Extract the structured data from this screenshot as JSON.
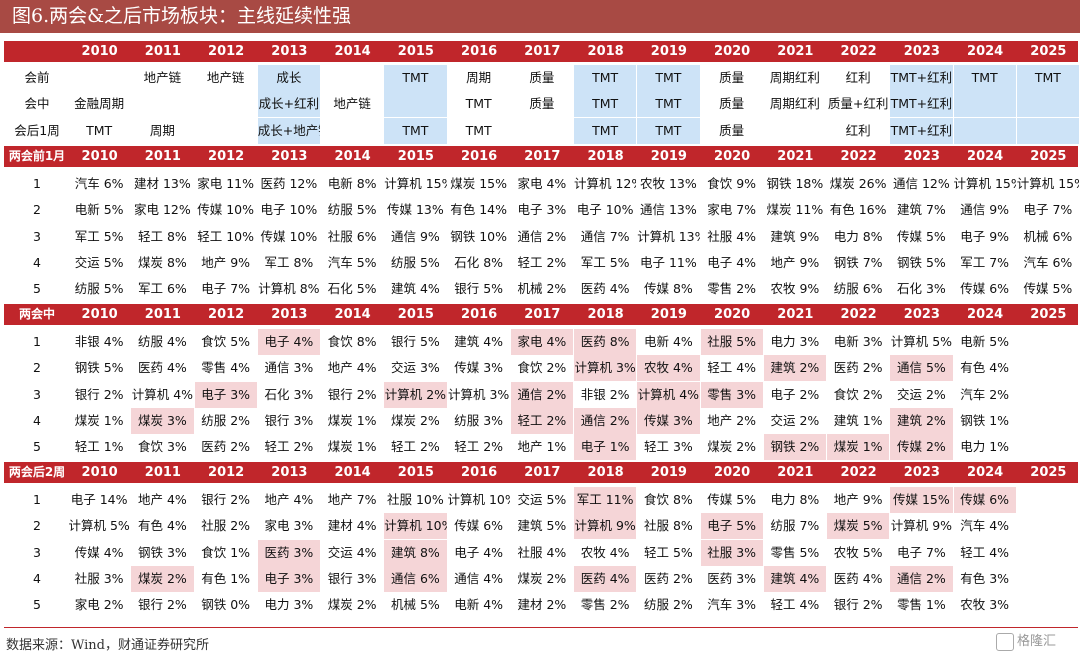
{
  "title": "图6.两会&之后市场板块：主线延续性强",
  "years": [
    "2010",
    "2011",
    "2012",
    "2013",
    "2014",
    "2015",
    "2016",
    "2017",
    "2018",
    "2019",
    "2020",
    "2021",
    "2022",
    "2023",
    "2024",
    "2025"
  ],
  "summary": {
    "rows": [
      {
        "label": "会前",
        "cells": [
          "",
          "地产链",
          "地产链",
          "成长",
          "",
          "TMT",
          "周期",
          "质量",
          "TMT",
          "TMT",
          "质量",
          "周期红利",
          "红利",
          "TMT+红利",
          "TMT",
          "TMT"
        ]
      },
      {
        "label": "会中",
        "cells": [
          "金融周期",
          "",
          "",
          "成长+红利",
          "地产链",
          "",
          "TMT",
          "质量",
          "TMT",
          "TMT",
          "质量",
          "周期红利",
          "质量+红利",
          "TMT+红利",
          "",
          ""
        ]
      },
      {
        "label": "会后1周",
        "cells": [
          "TMT",
          "周期",
          "",
          "成长+地产链",
          "",
          "TMT",
          "TMT",
          "",
          "TMT",
          "TMT",
          "质量",
          "",
          "红利",
          "TMT+红利",
          "",
          ""
        ]
      }
    ],
    "blue_years": [
      3,
      5,
      8,
      9,
      13,
      14,
      15
    ]
  },
  "sections": [
    {
      "label": "两会前1月",
      "rows": [
        {
          "rank": "1",
          "cells": [
            "汽车 6%",
            "建材 13%",
            "家电 11%",
            "医药 12%",
            "电新 8%",
            "计算机 15%",
            "煤炭 15%",
            "家电 4%",
            "计算机 12%",
            "农牧 13%",
            "食饮 9%",
            "钢铁 18%",
            "煤炭 26%",
            "通信 12%",
            "计算机 15%",
            "计算机 15%"
          ]
        },
        {
          "rank": "2",
          "cells": [
            "电新 5%",
            "家电 12%",
            "传媒 10%",
            "电子 10%",
            "纺服 5%",
            "传媒 13%",
            "有色 14%",
            "电子 3%",
            "电子 10%",
            "通信 13%",
            "家电 7%",
            "煤炭 11%",
            "有色 16%",
            "建筑 7%",
            "通信 9%",
            "电子 7%"
          ]
        },
        {
          "rank": "3",
          "cells": [
            "军工 5%",
            "轻工 8%",
            "轻工 10%",
            "传媒 10%",
            "社服 6%",
            "通信 9%",
            "钢铁 10%",
            "通信 2%",
            "通信 7%",
            "计算机 13%",
            "社服 4%",
            "建筑 9%",
            "电力 8%",
            "传媒 5%",
            "电子 9%",
            "机械 6%"
          ]
        },
        {
          "rank": "4",
          "cells": [
            "交运 5%",
            "煤炭 8%",
            "地产 9%",
            "军工 8%",
            "汽车 5%",
            "纺服 5%",
            "石化 8%",
            "轻工 2%",
            "军工 5%",
            "电子 11%",
            "电子 4%",
            "地产 9%",
            "钢铁 7%",
            "钢铁 5%",
            "军工 7%",
            "汽车 6%"
          ]
        },
        {
          "rank": "5",
          "cells": [
            "纺服 5%",
            "军工 6%",
            "电子 7%",
            "计算机 8%",
            "石化 5%",
            "建筑 4%",
            "银行 5%",
            "机械 2%",
            "医药 4%",
            "传媒 8%",
            "零售 2%",
            "农牧 9%",
            "纺服 6%",
            "石化 3%",
            "传媒 6%",
            "传媒 5%"
          ]
        }
      ],
      "pink": []
    },
    {
      "label": "两会中",
      "rows": [
        {
          "rank": "1",
          "cells": [
            "非银 4%",
            "纺服 4%",
            "食饮 5%",
            "电子 4%",
            "食饮 8%",
            "银行 5%",
            "建筑 4%",
            "家电 4%",
            "医药 8%",
            "电新 4%",
            "社服 5%",
            "电力 3%",
            "电新 3%",
            "计算机 5%",
            "电新 5%",
            ""
          ]
        },
        {
          "rank": "2",
          "cells": [
            "钢铁 5%",
            "医药 4%",
            "零售 4%",
            "通信 3%",
            "地产 4%",
            "交运 3%",
            "传媒 3%",
            "食饮 2%",
            "计算机 3%",
            "农牧 4%",
            "轻工 4%",
            "建筑 2%",
            "医药 2%",
            "通信 5%",
            "有色 4%",
            ""
          ]
        },
        {
          "rank": "3",
          "cells": [
            "银行 2%",
            "计算机 4%",
            "电子 3%",
            "石化 3%",
            "银行 2%",
            "计算机 2%",
            "计算机 3%",
            "通信 2%",
            "非银 2%",
            "计算机 4%",
            "零售 3%",
            "电子 2%",
            "食饮 2%",
            "交运 2%",
            "汽车 2%",
            ""
          ]
        },
        {
          "rank": "4",
          "cells": [
            "煤炭 1%",
            "煤炭 3%",
            "纺服 2%",
            "银行 3%",
            "煤炭 1%",
            "煤炭 2%",
            "纺服 3%",
            "轻工 2%",
            "通信 2%",
            "传媒 3%",
            "地产 2%",
            "交运 2%",
            "建筑 1%",
            "建筑 2%",
            "钢铁 1%",
            ""
          ]
        },
        {
          "rank": "5",
          "cells": [
            "轻工 1%",
            "食饮 3%",
            "医药 2%",
            "轻工 2%",
            "煤炭 1%",
            "轻工 2%",
            "轻工 2%",
            "地产 1%",
            "电子 1%",
            "轻工 3%",
            "煤炭 2%",
            "钢铁 2%",
            "煤炭 1%",
            "传媒 2%",
            "电力 1%",
            ""
          ]
        }
      ],
      "pink": [
        [
          0,
          3
        ],
        [
          0,
          7
        ],
        [
          0,
          8
        ],
        [
          0,
          10
        ],
        [
          1,
          8
        ],
        [
          1,
          9
        ],
        [
          1,
          11
        ],
        [
          1,
          13
        ],
        [
          2,
          2
        ],
        [
          2,
          5
        ],
        [
          2,
          7
        ],
        [
          2,
          9
        ],
        [
          2,
          10
        ],
        [
          3,
          1
        ],
        [
          3,
          7
        ],
        [
          3,
          8
        ],
        [
          3,
          9
        ],
        [
          3,
          13
        ],
        [
          4,
          8
        ],
        [
          4,
          11
        ],
        [
          4,
          12
        ],
        [
          4,
          13
        ]
      ]
    },
    {
      "label": "两会后2周",
      "rows": [
        {
          "rank": "1",
          "cells": [
            "电子 14%",
            "地产 4%",
            "银行 2%",
            "地产 4%",
            "地产 7%",
            "社服 10%",
            "计算机 10%",
            "交运 5%",
            "军工 11%",
            "食饮 8%",
            "传媒 5%",
            "电力 8%",
            "地产 9%",
            "传媒 15%",
            "传媒 6%",
            ""
          ]
        },
        {
          "rank": "2",
          "cells": [
            "计算机 5%",
            "有色 4%",
            "社服 2%",
            "家电 3%",
            "建材 4%",
            "计算机 10%",
            "传媒 6%",
            "建筑 5%",
            "计算机 9%",
            "社服 8%",
            "电子 5%",
            "纺服 7%",
            "煤炭 5%",
            "计算机 9%",
            "汽车 4%",
            ""
          ]
        },
        {
          "rank": "3",
          "cells": [
            "传媒 4%",
            "钢铁 3%",
            "食饮 1%",
            "医药 3%",
            "交运 4%",
            "建筑 8%",
            "电子 4%",
            "社服 4%",
            "农牧 4%",
            "轻工 5%",
            "社服 3%",
            "零售 5%",
            "农牧 5%",
            "电子 7%",
            "轻工 4%",
            ""
          ]
        },
        {
          "rank": "4",
          "cells": [
            "社服 3%",
            "煤炭 2%",
            "有色 1%",
            "电子 3%",
            "银行 3%",
            "通信 6%",
            "通信 4%",
            "煤炭 2%",
            "医药 4%",
            "医药 2%",
            "医药 3%",
            "建筑 4%",
            "医药 4%",
            "通信 2%",
            "有色 3%",
            ""
          ]
        },
        {
          "rank": "5",
          "cells": [
            "家电 2%",
            "银行 2%",
            "钢铁 0%",
            "电力 3%",
            "煤炭 2%",
            "机械 5%",
            "电新 4%",
            "建材 2%",
            "零售 2%",
            "纺服 2%",
            "汽车 3%",
            "轻工 4%",
            "银行 2%",
            "零售 1%",
            "农牧 3%",
            ""
          ]
        }
      ],
      "pink": [
        [
          0,
          8
        ],
        [
          0,
          13
        ],
        [
          0,
          14
        ],
        [
          1,
          5
        ],
        [
          1,
          8
        ],
        [
          1,
          10
        ],
        [
          1,
          12
        ],
        [
          2,
          3
        ],
        [
          2,
          5
        ],
        [
          2,
          10
        ],
        [
          3,
          1
        ],
        [
          3,
          3
        ],
        [
          3,
          5
        ],
        [
          3,
          8
        ],
        [
          3,
          11
        ],
        [
          3,
          13
        ]
      ]
    }
  ],
  "source": "数据来源：Wind，财通证券研究所",
  "watermark": "格隆汇"
}
